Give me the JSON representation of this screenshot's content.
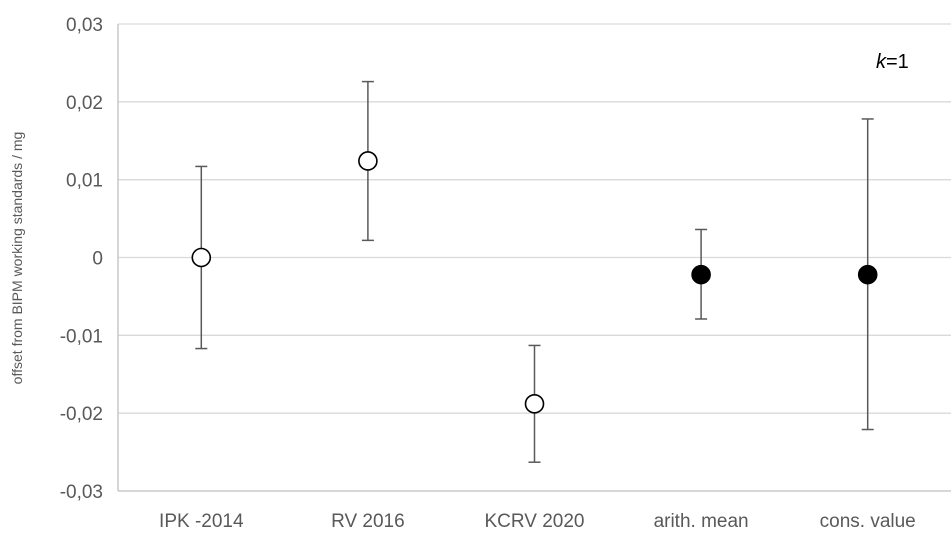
{
  "chart_data": {
    "type": "scatter",
    "title": "",
    "xlabel": "",
    "ylabel": "offset from BIPM working standards / mg",
    "categories": [
      "IPK -2014",
      "RV 2016",
      "KCRV 2020",
      "arith. mean",
      "cons. value"
    ],
    "ylim": [
      -0.03,
      0.03
    ],
    "yticks": [
      0.03,
      0.02,
      0.01,
      0,
      -0.01,
      -0.02,
      -0.03
    ],
    "ytick_labels": [
      "0,03",
      "0,02",
      "0,01",
      "0",
      "-0,01",
      "-0,02",
      "-0,03"
    ],
    "grid": true,
    "annotation": {
      "italic": "k",
      "rest": "=1"
    },
    "points": [
      {
        "category": "IPK -2014",
        "value": 0.0,
        "err_low": -0.0117,
        "err_high": 0.0117,
        "filled": false
      },
      {
        "category": "RV 2016",
        "value": 0.0124,
        "err_low": 0.0022,
        "err_high": 0.0226,
        "filled": false
      },
      {
        "category": "KCRV 2020",
        "value": -0.0188,
        "err_low": -0.0263,
        "err_high": -0.0113,
        "filled": false
      },
      {
        "category": "arith. mean",
        "value": -0.0022,
        "err_low": -0.0079,
        "err_high": 0.0036,
        "filled": true
      },
      {
        "category": "cons. value",
        "value": -0.0022,
        "err_low": -0.0221,
        "err_high": 0.0178,
        "filled": true
      }
    ],
    "colors": {
      "grid": "#d9d9d9",
      "axis": "#bfbfbf",
      "errorbar": "#595959",
      "marker_stroke": "#000000",
      "filled_marker": "#000000",
      "open_marker": "#ffffff"
    }
  }
}
